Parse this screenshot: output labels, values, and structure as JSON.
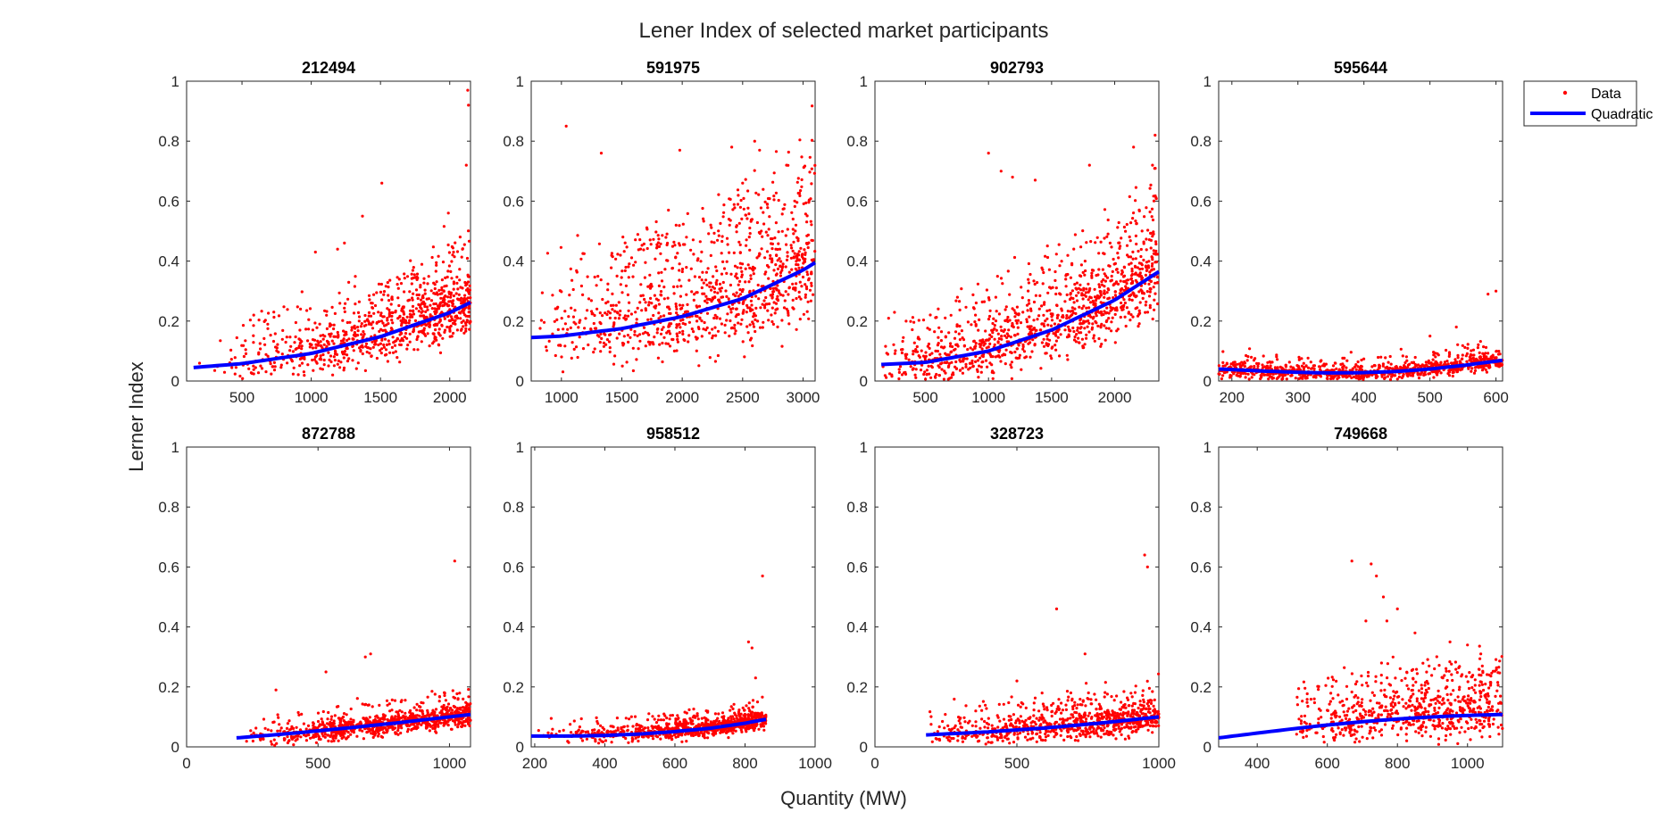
{
  "figure": {
    "title": "Lener Index of selected market participants",
    "xlabel": "Quantity (MW)",
    "ylabel": "Lerner Index",
    "legend": {
      "placement": "right-outside",
      "entries": [
        "Data",
        "Quadratic"
      ]
    },
    "colors": {
      "data": "#ff0000",
      "fit": "#0000ff",
      "axes": "#262626"
    }
  },
  "chart_data": [
    {
      "type": "scatter",
      "title": "212494",
      "xlim": [
        100,
        2150
      ],
      "ylim": [
        0,
        1
      ],
      "xticks": [
        500,
        1000,
        1500,
        2000
      ],
      "yticks": [
        0,
        0.2,
        0.4,
        0.6,
        0.8,
        1
      ],
      "xticklabels": [
        "500",
        "1000",
        "1500",
        "2000"
      ],
      "yticklabels": [
        "0",
        "0.2",
        "0.4",
        "0.6",
        "0.8",
        "1"
      ],
      "series": [
        {
          "name": "Data",
          "kind": "points",
          "generator": {
            "n": 900,
            "x_range": [
              150,
              2150
            ],
            "x_skew": 0.75,
            "spread": 0.06,
            "heavy_tail": 0.25,
            "seed": 11
          },
          "x": [
            2130,
            2135,
            2120,
            1990,
            1510,
            1370,
            1240,
            1030,
            1190
          ],
          "y": [
            0.97,
            0.92,
            0.72,
            0.56,
            0.66,
            0.55,
            0.46,
            0.43,
            0.44
          ]
        },
        {
          "name": "Quadratic",
          "kind": "fit",
          "x_range": [
            150,
            2150
          ],
          "x": [
            150,
            500,
            1000,
            1500,
            2000,
            2150
          ],
          "y": [
            0.045,
            0.058,
            0.092,
            0.148,
            0.228,
            0.262
          ]
        }
      ]
    },
    {
      "type": "scatter",
      "title": "591975",
      "xlim": [
        750,
        3100
      ],
      "ylim": [
        0,
        1
      ],
      "xticks": [
        1000,
        1500,
        2000,
        2500,
        3000
      ],
      "yticks": [
        0,
        0.2,
        0.4,
        0.6,
        0.8,
        1
      ],
      "xticklabels": [
        "1000",
        "1500",
        "2000",
        "2500",
        "3000"
      ],
      "yticklabels": [
        "0",
        "0.2",
        "0.4",
        "0.6",
        "0.8",
        "1"
      ],
      "series": [
        {
          "name": "Data",
          "kind": "points",
          "generator": {
            "n": 1000,
            "x_range": [
              800,
              3100
            ],
            "x_skew": 0.55,
            "spread": 0.09,
            "heavy_tail": 0.3,
            "seed": 23
          },
          "x": [
            1040,
            1330,
            1980,
            2410,
            2600,
            2640,
            2500,
            3050
          ],
          "y": [
            0.85,
            0.76,
            0.77,
            0.78,
            0.8,
            0.77,
            0.66,
            0.6
          ]
        },
        {
          "name": "Quadratic",
          "kind": "fit",
          "x_range": [
            750,
            3100
          ],
          "x": [
            750,
            1000,
            1500,
            2000,
            2500,
            3000,
            3100
          ],
          "y": [
            0.145,
            0.15,
            0.175,
            0.215,
            0.275,
            0.37,
            0.395
          ]
        }
      ]
    },
    {
      "type": "scatter",
      "title": "902793",
      "xlim": [
        100,
        2350
      ],
      "ylim": [
        0,
        1
      ],
      "xticks": [
        500,
        1000,
        1500,
        2000
      ],
      "yticks": [
        0,
        0.2,
        0.4,
        0.6,
        0.8,
        1
      ],
      "xticklabels": [
        "500",
        "1000",
        "1500",
        "2000"
      ],
      "yticklabels": [
        "0",
        "0.2",
        "0.4",
        "0.6",
        "0.8",
        "1"
      ],
      "series": [
        {
          "name": "Data",
          "kind": "points",
          "generator": {
            "n": 1100,
            "x_range": [
              150,
              2350
            ],
            "x_skew": 0.45,
            "spread": 0.07,
            "heavy_tail": 0.28,
            "seed": 37
          },
          "x": [
            1000,
            1100,
            1190,
            1370,
            2320,
            2300,
            2150,
            1800
          ],
          "y": [
            0.76,
            0.7,
            0.68,
            0.67,
            0.82,
            0.72,
            0.78,
            0.72
          ]
        },
        {
          "name": "Quadratic",
          "kind": "fit",
          "x_range": [
            150,
            2350
          ],
          "x": [
            150,
            500,
            1000,
            1500,
            2000,
            2350
          ],
          "y": [
            0.055,
            0.062,
            0.1,
            0.17,
            0.27,
            0.365
          ]
        }
      ]
    },
    {
      "type": "scatter",
      "title": "595644",
      "xlim": [
        180,
        610
      ],
      "ylim": [
        0,
        1
      ],
      "xticks": [
        200,
        300,
        400,
        500,
        600
      ],
      "yticks": [
        0,
        0.2,
        0.4,
        0.6,
        0.8,
        1
      ],
      "xticklabels": [
        "200",
        "300",
        "400",
        "500",
        "600"
      ],
      "yticklabels": [
        "0",
        "0.2",
        "0.4",
        "0.6",
        "0.8",
        "1"
      ],
      "series": [
        {
          "name": "Data",
          "kind": "points",
          "generator": {
            "n": 900,
            "x_range": [
              180,
              610
            ],
            "x_skew": 0.12,
            "spread": 0.025,
            "heavy_tail": 0.12,
            "seed": 41
          },
          "x": [
            600,
            588,
            540,
            500
          ],
          "y": [
            0.3,
            0.29,
            0.18,
            0.15
          ]
        },
        {
          "name": "Quadratic",
          "kind": "fit",
          "x_range": [
            180,
            610
          ],
          "x": [
            180,
            250,
            300,
            350,
            400,
            450,
            500,
            550,
            610
          ],
          "y": [
            0.04,
            0.033,
            0.029,
            0.027,
            0.028,
            0.032,
            0.04,
            0.052,
            0.069
          ]
        }
      ]
    },
    {
      "type": "scatter",
      "title": "872788",
      "xlim": [
        0,
        1080
      ],
      "ylim": [
        0,
        1
      ],
      "xticks": [
        0,
        500,
        1000
      ],
      "yticks": [
        0,
        0.2,
        0.4,
        0.6,
        0.8,
        1
      ],
      "xticklabels": [
        "0",
        "500",
        "1000"
      ],
      "yticklabels": [
        "0",
        "0.2",
        "0.4",
        "0.6",
        "0.8",
        "1"
      ],
      "series": [
        {
          "name": "Data",
          "kind": "points",
          "generator": {
            "n": 900,
            "x_range": [
              190,
              1080
            ],
            "x_skew": 0.6,
            "spread": 0.03,
            "heavy_tail": 0.12,
            "seed": 53
          },
          "x": [
            1020,
            680,
            700,
            530,
            340
          ],
          "y": [
            0.62,
            0.3,
            0.31,
            0.25,
            0.19
          ]
        },
        {
          "name": "Quadratic",
          "kind": "fit",
          "x_range": [
            190,
            1080
          ],
          "x": [
            190,
            400,
            600,
            800,
            1000,
            1080
          ],
          "y": [
            0.03,
            0.045,
            0.062,
            0.08,
            0.1,
            0.108
          ]
        }
      ]
    },
    {
      "type": "scatter",
      "title": "958512",
      "xlim": [
        190,
        1000
      ],
      "ylim": [
        0,
        1
      ],
      "xticks": [
        200,
        400,
        600,
        800,
        1000
      ],
      "yticks": [
        0,
        0.2,
        0.4,
        0.6,
        0.8,
        1
      ],
      "xticklabels": [
        "200",
        "400",
        "600",
        "800",
        "1000"
      ],
      "yticklabels": [
        "0",
        "0.2",
        "0.4",
        "0.6",
        "0.8",
        "1"
      ],
      "series": [
        {
          "name": "Data",
          "kind": "points",
          "generator": {
            "n": 900,
            "x_range": [
              200,
              860
            ],
            "x_skew": 0.75,
            "spread": 0.025,
            "heavy_tail": 0.15,
            "seed": 61
          },
          "x": [
            850,
            810,
            820,
            830
          ],
          "y": [
            0.57,
            0.35,
            0.33,
            0.23
          ]
        },
        {
          "name": "Quadratic",
          "kind": "fit",
          "x_range": [
            190,
            860
          ],
          "x": [
            190,
            300,
            400,
            500,
            600,
            700,
            800,
            860
          ],
          "y": [
            0.036,
            0.036,
            0.038,
            0.043,
            0.051,
            0.062,
            0.079,
            0.092
          ]
        }
      ]
    },
    {
      "type": "scatter",
      "title": "328723",
      "xlim": [
        0,
        1000
      ],
      "ylim": [
        0,
        1
      ],
      "xticks": [
        0,
        500,
        1000
      ],
      "yticks": [
        0,
        0.2,
        0.4,
        0.6,
        0.8,
        1
      ],
      "xticklabels": [
        "0",
        "500",
        "1000"
      ],
      "yticklabels": [
        "0",
        "0.2",
        "0.4",
        "0.6",
        "0.8",
        "1"
      ],
      "series": [
        {
          "name": "Data",
          "kind": "points",
          "generator": {
            "n": 800,
            "x_range": [
              180,
              1000
            ],
            "x_skew": 0.6,
            "spread": 0.04,
            "heavy_tail": 0.2,
            "seed": 73
          },
          "x": [
            950,
            960,
            640,
            500,
            740
          ],
          "y": [
            0.64,
            0.6,
            0.46,
            0.22,
            0.31
          ]
        },
        {
          "name": "Quadratic",
          "kind": "fit",
          "x_range": [
            180,
            1000
          ],
          "x": [
            180,
            400,
            600,
            800,
            1000
          ],
          "y": [
            0.04,
            0.05,
            0.063,
            0.08,
            0.1
          ]
        }
      ]
    },
    {
      "type": "scatter",
      "title": "749668",
      "xlim": [
        290,
        1100
      ],
      "ylim": [
        0,
        1
      ],
      "xticks": [
        400,
        600,
        800,
        1000
      ],
      "yticks": [
        0,
        0.2,
        0.4,
        0.6,
        0.8,
        1
      ],
      "xticklabels": [
        "400",
        "600",
        "800",
        "1000"
      ],
      "yticklabels": [
        "0",
        "0.2",
        "0.4",
        "0.6",
        "0.8",
        "1"
      ],
      "series": [
        {
          "name": "Data",
          "kind": "points",
          "generator": {
            "n": 700,
            "x_range": [
              510,
              1100
            ],
            "x_skew": 0.35,
            "spread": 0.06,
            "heavy_tail": 0.35,
            "seed": 89
          },
          "x": [
            670,
            725,
            740,
            760,
            800,
            710,
            850,
            950,
            770,
            1000
          ],
          "y": [
            0.62,
            0.61,
            0.57,
            0.5,
            0.46,
            0.42,
            0.38,
            0.35,
            0.42,
            0.34
          ]
        },
        {
          "name": "Quadratic",
          "kind": "fit",
          "x_range": [
            290,
            1100
          ],
          "x": [
            290,
            400,
            500,
            600,
            700,
            800,
            900,
            1000,
            1100
          ],
          "y": [
            0.03,
            0.046,
            0.06,
            0.073,
            0.084,
            0.093,
            0.1,
            0.105,
            0.108
          ]
        }
      ]
    }
  ]
}
